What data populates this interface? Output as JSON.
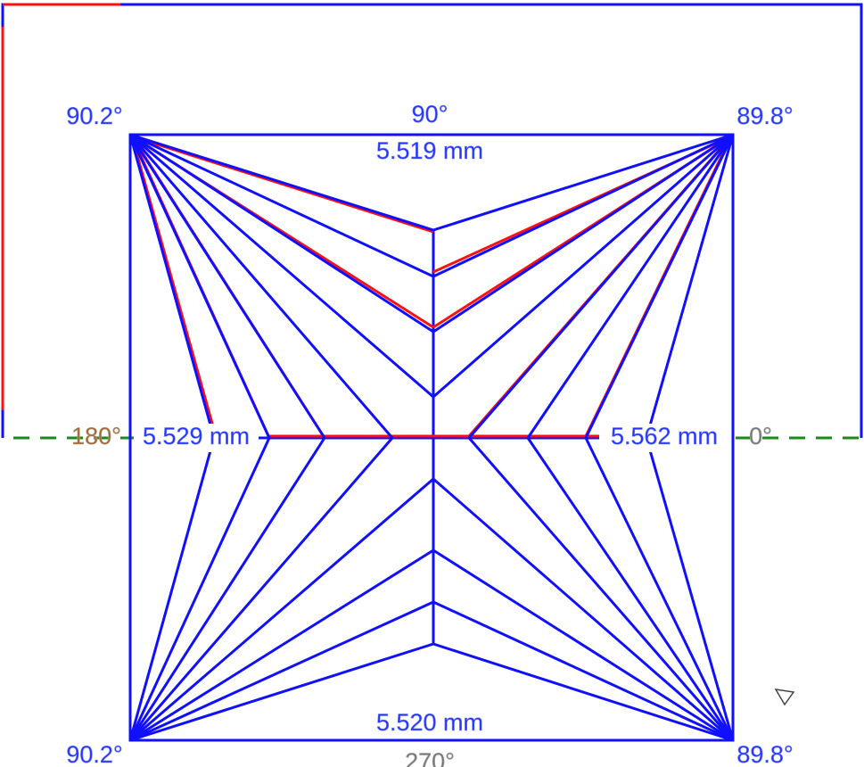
{
  "corners": {
    "top_left": "90.2°",
    "top_right": "89.8°",
    "bottom_left": "90.2°",
    "bottom_right": "89.8°"
  },
  "directions": {
    "top": "90°",
    "left": "180°",
    "right": "0°",
    "bottom": "270°"
  },
  "measurements": {
    "top": "5.519 mm",
    "left": "5.529 mm",
    "right": "5.562 mm",
    "bottom": "5.520 mm"
  }
}
